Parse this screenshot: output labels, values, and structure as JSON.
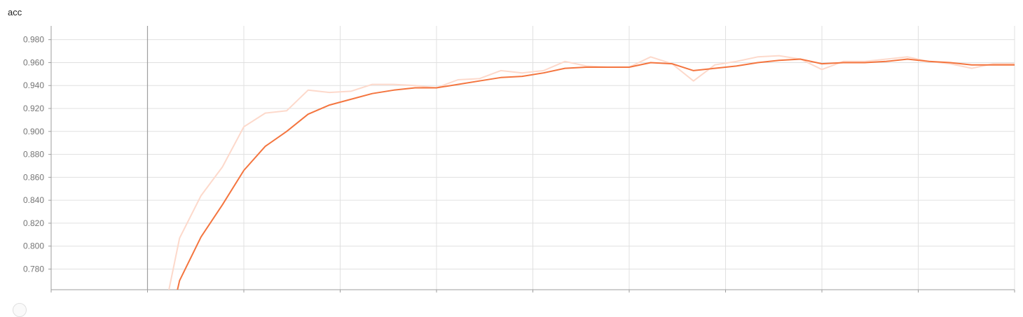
{
  "chart_data": {
    "type": "line",
    "title": "acc",
    "xlabel": "",
    "ylabel": "",
    "xlim": [
      0,
      45
    ],
    "ylim": [
      0.762,
      0.992
    ],
    "y_ticks": [
      0.78,
      0.8,
      0.82,
      0.84,
      0.86,
      0.88,
      0.9,
      0.92,
      0.94,
      0.96,
      0.98
    ],
    "y_tick_labels": [
      "0.780",
      "0.800",
      "0.820",
      "0.840",
      "0.860",
      "0.880",
      "0.900",
      "0.920",
      "0.940",
      "0.960",
      "0.980"
    ],
    "x_grid_count": 10,
    "grid": true,
    "series": [
      {
        "role": "raw",
        "color": "#fdd9cb",
        "x": [
          5.5,
          6,
          7,
          8,
          9,
          10,
          11,
          12,
          13,
          14,
          15,
          16,
          17,
          18,
          19,
          20,
          21,
          22,
          23,
          24,
          25,
          26,
          27,
          28,
          29,
          30,
          31,
          32,
          33,
          34,
          35,
          36,
          37,
          38,
          39,
          40,
          41,
          42,
          43,
          44,
          45
        ],
        "y": [
          0.762,
          0.807,
          0.844,
          0.869,
          0.904,
          0.916,
          0.918,
          0.936,
          0.934,
          0.935,
          0.941,
          0.941,
          0.94,
          0.938,
          0.945,
          0.946,
          0.953,
          0.951,
          0.953,
          0.961,
          0.957,
          0.956,
          0.956,
          0.965,
          0.959,
          0.944,
          0.958,
          0.961,
          0.965,
          0.966,
          0.963,
          0.954,
          0.961,
          0.961,
          0.963,
          0.965,
          0.961,
          0.959,
          0.955,
          0.959,
          0.959
        ]
      },
      {
        "role": "smoothed",
        "color": "#f4753f",
        "x": [
          5.9,
          6,
          7,
          8,
          9,
          10,
          11,
          12,
          13,
          14,
          15,
          16,
          17,
          18,
          19,
          20,
          21,
          22,
          23,
          24,
          25,
          26,
          27,
          28,
          29,
          30,
          31,
          32,
          33,
          34,
          35,
          36,
          37,
          38,
          39,
          40,
          41,
          42,
          43,
          44,
          45
        ],
        "y": [
          0.762,
          0.77,
          0.808,
          0.836,
          0.866,
          0.887,
          0.9,
          0.915,
          0.923,
          0.928,
          0.933,
          0.936,
          0.938,
          0.938,
          0.941,
          0.944,
          0.947,
          0.948,
          0.951,
          0.955,
          0.956,
          0.956,
          0.956,
          0.96,
          0.959,
          0.953,
          0.955,
          0.957,
          0.96,
          0.962,
          0.963,
          0.959,
          0.96,
          0.96,
          0.961,
          0.963,
          0.961,
          0.96,
          0.958,
          0.958,
          0.958
        ]
      }
    ]
  }
}
